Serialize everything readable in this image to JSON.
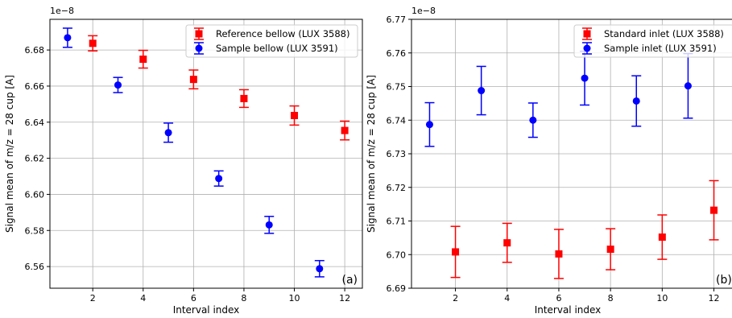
{
  "chart_data": [
    {
      "type": "scatter",
      "xlabel": "Interval index",
      "ylabel": "Signal mean of m/z = 28 cup [A]",
      "offset_text": "1e−8",
      "panel_label": "(a)",
      "xlim": [
        0.3,
        12.7
      ],
      "ylim": [
        6.548,
        6.697
      ],
      "xticks": [
        2,
        4,
        6,
        8,
        10,
        12
      ],
      "yticks": [
        6.56,
        6.58,
        6.6,
        6.62,
        6.64,
        6.66,
        6.68
      ],
      "ytick_labels": [
        "6.56",
        "6.58",
        "6.60",
        "6.62",
        "6.64",
        "6.66",
        "6.68"
      ],
      "grid": true,
      "legend_position": "top-right",
      "series": [
        {
          "name": "Reference bellow (LUX 3588)",
          "color": "#ff0000",
          "marker": "square",
          "x": [
            2,
            4,
            6,
            8,
            10,
            12
          ],
          "y": [
            6.6837,
            6.6749,
            6.6637,
            6.6531,
            6.6437,
            6.6354
          ],
          "err": [
            0.0042,
            0.0049,
            0.0052,
            0.0049,
            0.0053,
            0.0052
          ]
        },
        {
          "name": "Sample bellow (LUX 3591)",
          "color": "#0000ff",
          "marker": "circle",
          "x": [
            1,
            3,
            5,
            7,
            9,
            11
          ],
          "y": [
            6.6868,
            6.6606,
            6.6342,
            6.6088,
            6.5831,
            6.5588
          ],
          "err": [
            0.0053,
            0.0042,
            0.0053,
            0.0042,
            0.0047,
            0.0045
          ]
        }
      ]
    },
    {
      "type": "scatter",
      "xlabel": "Interval index",
      "ylabel": "Signal mean of m/z = 28 cup [A]",
      "offset_text": "1e−8",
      "panel_label": "(b)",
      "xlim": [
        0.3,
        12.7
      ],
      "ylim": [
        6.69,
        6.77
      ],
      "xticks": [
        2,
        4,
        6,
        8,
        10,
        12
      ],
      "yticks": [
        6.69,
        6.7,
        6.71,
        6.72,
        6.73,
        6.74,
        6.75,
        6.76,
        6.77
      ],
      "ytick_labels": [
        "6.69",
        "6.70",
        "6.71",
        "6.72",
        "6.73",
        "6.74",
        "6.75",
        "6.76",
        "6.77"
      ],
      "grid": true,
      "legend_position": "top-right",
      "series": [
        {
          "name": "Standard inlet (LUX 3588)",
          "color": "#ff0000",
          "marker": "square",
          "x": [
            2,
            4,
            6,
            8,
            10,
            12
          ],
          "y": [
            6.7008,
            6.7035,
            6.7002,
            6.7016,
            6.7052,
            6.7132
          ],
          "err": [
            0.0076,
            0.0058,
            0.0073,
            0.0061,
            0.0066,
            0.0088
          ]
        },
        {
          "name": "Sample inlet (LUX 3591)",
          "color": "#0000ff",
          "marker": "circle",
          "x": [
            1,
            3,
            5,
            7,
            9,
            11
          ],
          "y": [
            6.7387,
            6.7488,
            6.74,
            6.7525,
            6.7457,
            6.7502
          ],
          "err": [
            0.0065,
            0.0072,
            0.0051,
            0.008,
            0.0075,
            0.0096
          ]
        }
      ]
    }
  ]
}
